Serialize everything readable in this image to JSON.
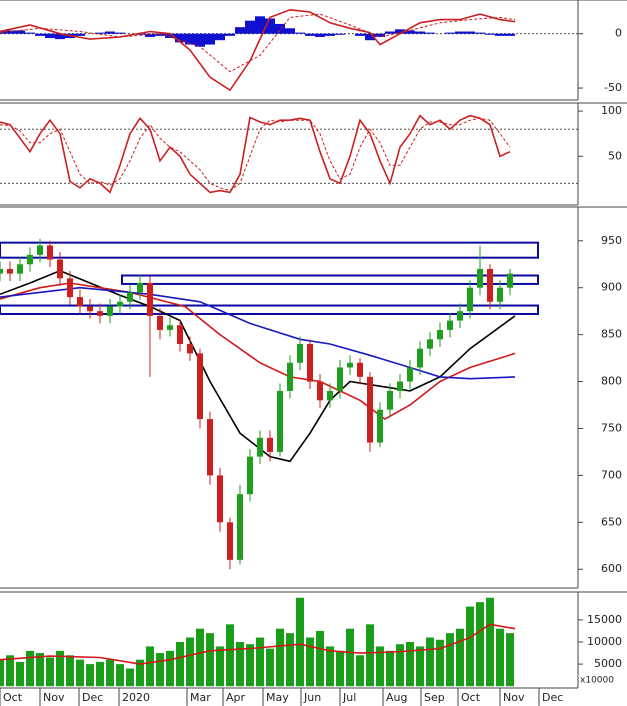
{
  "chart_data": [
    {
      "type": "macd",
      "ylim": [
        -61,
        31
      ],
      "yticks": [
        0,
        -50
      ],
      "reference_lines": [
        0
      ],
      "histogram": {
        "color": "#1010d0",
        "values": [
          2,
          3,
          3,
          1,
          -2,
          -4,
          -5,
          -4,
          -2,
          0,
          1,
          2,
          1,
          0,
          -1,
          -3,
          -2,
          -4,
          -8,
          -10,
          -12,
          -10,
          -6,
          -2,
          6,
          12,
          16,
          14,
          9,
          5,
          1,
          -2,
          -3,
          -2,
          -1,
          0,
          -2,
          -6,
          -3,
          2,
          4,
          3,
          2,
          1,
          0,
          1,
          2,
          2,
          1,
          -1,
          -2,
          -2
        ]
      },
      "series": [
        {
          "color": "#cc1f1f",
          "style": "solid",
          "x": [
            0,
            3,
            6,
            9,
            12,
            15,
            17,
            19,
            21,
            23,
            25,
            27,
            29,
            31,
            33,
            35,
            37,
            38,
            40,
            42,
            44,
            46,
            48,
            50,
            51.5
          ],
          "values": [
            2,
            8,
            0,
            -5,
            -3,
            2,
            0,
            -15,
            -40,
            -52,
            -25,
            15,
            22,
            20,
            10,
            5,
            1,
            -10,
            0,
            10,
            13,
            13,
            18,
            13,
            11
          ]
        },
        {
          "color": "#cc1f1f",
          "style": "dashed",
          "x": [
            0,
            4,
            8,
            12,
            16,
            20,
            23,
            26,
            29,
            32,
            35,
            38,
            41,
            44,
            47,
            50,
            51.5
          ],
          "values": [
            1,
            5,
            2,
            -3,
            0,
            -12,
            -35,
            -20,
            15,
            18,
            8,
            -3,
            3,
            10,
            13,
            15,
            13
          ]
        }
      ]
    },
    {
      "type": "line",
      "ylim": [
        -4,
        109
      ],
      "yticks": [
        100,
        50
      ],
      "reference_lines": [
        80,
        20
      ],
      "series": [
        {
          "color": "#cc1f1f",
          "style": "solid",
          "values": [
            88,
            85,
            70,
            55,
            75,
            90,
            75,
            22,
            15,
            25,
            20,
            10,
            40,
            75,
            92,
            80,
            45,
            60,
            50,
            30,
            20,
            10,
            12,
            10,
            30,
            93,
            88,
            85,
            90,
            90,
            92,
            90,
            55,
            25,
            20,
            50,
            90,
            75,
            45,
            20,
            60,
            75,
            95,
            85,
            90,
            80,
            90,
            95,
            92,
            85,
            50,
            55
          ]
        },
        {
          "color": "#cc1f1f",
          "style": "dashed",
          "values": [
            85,
            84,
            78,
            65,
            65,
            75,
            80,
            55,
            30,
            20,
            22,
            18,
            25,
            45,
            70,
            85,
            70,
            60,
            55,
            45,
            35,
            20,
            15,
            12,
            20,
            50,
            80,
            90,
            88,
            90,
            90,
            90,
            75,
            45,
            25,
            30,
            60,
            80,
            65,
            40,
            40,
            60,
            80,
            88,
            88,
            85,
            85,
            90,
            92,
            90,
            75,
            60
          ]
        }
      ]
    },
    {
      "type": "candlestick",
      "ylim": [
        580,
        986
      ],
      "yticks": [
        950,
        900,
        850,
        800,
        750,
        700,
        650,
        600
      ],
      "up_color": "#1f9e1f",
      "down_color": "#cc1f1f",
      "open": [
        915,
        920,
        915,
        925,
        935,
        945,
        930,
        910,
        890,
        880,
        875,
        870,
        880,
        885,
        895,
        905,
        870,
        855,
        860,
        840,
        830,
        760,
        700,
        650,
        610,
        680,
        720,
        740,
        725,
        790,
        820,
        840,
        800,
        780,
        790,
        815,
        820,
        805,
        735,
        770,
        790,
        800,
        815,
        835,
        845,
        855,
        865,
        875,
        900,
        920,
        885,
        900
      ],
      "high": [
        928,
        928,
        933,
        943,
        952,
        950,
        938,
        918,
        898,
        888,
        883,
        888,
        893,
        903,
        913,
        912,
        878,
        868,
        866,
        848,
        835,
        768,
        708,
        655,
        690,
        728,
        748,
        748,
        798,
        828,
        848,
        845,
        808,
        798,
        823,
        828,
        825,
        810,
        778,
        798,
        808,
        823,
        843,
        853,
        863,
        873,
        883,
        908,
        945,
        925,
        908,
        920
      ],
      "low": [
        907,
        907,
        907,
        917,
        927,
        922,
        902,
        882,
        872,
        867,
        862,
        862,
        872,
        877,
        887,
        805,
        845,
        848,
        832,
        822,
        750,
        690,
        640,
        600,
        605,
        672,
        712,
        715,
        720,
        782,
        812,
        792,
        772,
        772,
        782,
        807,
        797,
        725,
        730,
        762,
        782,
        792,
        807,
        827,
        837,
        847,
        857,
        867,
        892,
        877,
        877,
        892
      ],
      "close": [
        920,
        915,
        925,
        935,
        945,
        930,
        910,
        890,
        880,
        875,
        870,
        880,
        885,
        895,
        905,
        870,
        855,
        860,
        840,
        830,
        760,
        700,
        650,
        610,
        680,
        720,
        740,
        725,
        790,
        820,
        840,
        800,
        780,
        790,
        815,
        820,
        805,
        735,
        770,
        790,
        800,
        815,
        835,
        845,
        855,
        865,
        875,
        900,
        920,
        885,
        900,
        915
      ],
      "zone_color": "#0a0aa0",
      "zones": [
        {
          "x0": 0,
          "x1": 53.8,
          "low": 932,
          "high": 948
        },
        {
          "x0": 12.2,
          "x1": 53.8,
          "low": 904,
          "high": 913
        },
        {
          "x0": 0,
          "x1": 53.8,
          "low": 872,
          "high": 881
        }
      ],
      "series": [
        {
          "color": "#000000",
          "style": "solid",
          "x": [
            0,
            3,
            6,
            9,
            12,
            15,
            18,
            21,
            24,
            27,
            29,
            31,
            33,
            35,
            38,
            41,
            44,
            47,
            51.5
          ],
          "values": [
            893,
            905,
            918,
            905,
            892,
            880,
            865,
            800,
            745,
            720,
            715,
            745,
            780,
            800,
            795,
            790,
            805,
            835,
            870
          ]
        },
        {
          "color": "#d01818",
          "style": "solid",
          "x": [
            0,
            4,
            7,
            13,
            18.5,
            22,
            26,
            29,
            32,
            36,
            38.5,
            41,
            44,
            47,
            51.5
          ],
          "values": [
            888,
            900,
            905,
            895,
            880,
            850,
            820,
            805,
            800,
            780,
            760,
            775,
            800,
            815,
            830
          ]
        },
        {
          "color": "#1818c0",
          "style": "solid",
          "x": [
            0,
            8,
            15,
            20,
            25,
            30,
            33,
            37,
            41,
            44,
            47,
            51.5
          ],
          "values": [
            890,
            900,
            893,
            885,
            862,
            845,
            840,
            828,
            815,
            805,
            803,
            805
          ]
        }
      ]
    },
    {
      "type": "bar",
      "ylim": [
        -400,
        21300
      ],
      "yticks": [
        15000,
        10000,
        5000
      ],
      "unit_label": "x10000",
      "color": "#1a9e1a",
      "values": [
        6000,
        7000,
        5500,
        8000,
        7500,
        6500,
        8000,
        7000,
        6000,
        5000,
        5500,
        6000,
        5000,
        4000,
        6000,
        9000,
        7500,
        8000,
        10000,
        11000,
        13000,
        12000,
        9000,
        14000,
        10000,
        9500,
        11000,
        8500,
        13000,
        12000,
        20000,
        11000,
        12500,
        9000,
        8000,
        13000,
        7000,
        14000,
        9000,
        8000,
        9500,
        10000,
        9000,
        11000,
        10500,
        12000,
        13000,
        18000,
        19000,
        20000,
        13000,
        12000
      ],
      "series": [
        {
          "color": "#d01818",
          "style": "solid",
          "x": [
            0,
            5,
            10,
            14,
            17,
            21,
            25,
            30,
            33,
            36,
            40,
            44,
            47,
            49,
            51.5
          ],
          "values": [
            6000,
            6800,
            6500,
            5000,
            6000,
            8000,
            8500,
            9500,
            8000,
            7500,
            7800,
            8500,
            11000,
            14000,
            13000
          ]
        }
      ],
      "xlim": [
        0,
        57.8
      ],
      "xticks": [
        {
          "value": 0.5,
          "label": "Oct"
        },
        {
          "value": 4.5,
          "label": "Nov"
        },
        {
          "value": 8.4,
          "label": "Dec"
        },
        {
          "value": 12.4,
          "label": "2020"
        },
        {
          "value": 19.2,
          "label": "Mar"
        },
        {
          "value": 22.8,
          "label": "Apr"
        },
        {
          "value": 26.8,
          "label": "May"
        },
        {
          "value": 30.6,
          "label": "Jun"
        },
        {
          "value": 34.5,
          "label": "Jul"
        },
        {
          "value": 38.8,
          "label": "Aug"
        },
        {
          "value": 42.6,
          "label": "Sep"
        },
        {
          "value": 46.3,
          "label": "Oct"
        },
        {
          "value": 50.5,
          "label": "Nov"
        },
        {
          "value": 54.4,
          "label": "Dec"
        }
      ]
    }
  ]
}
